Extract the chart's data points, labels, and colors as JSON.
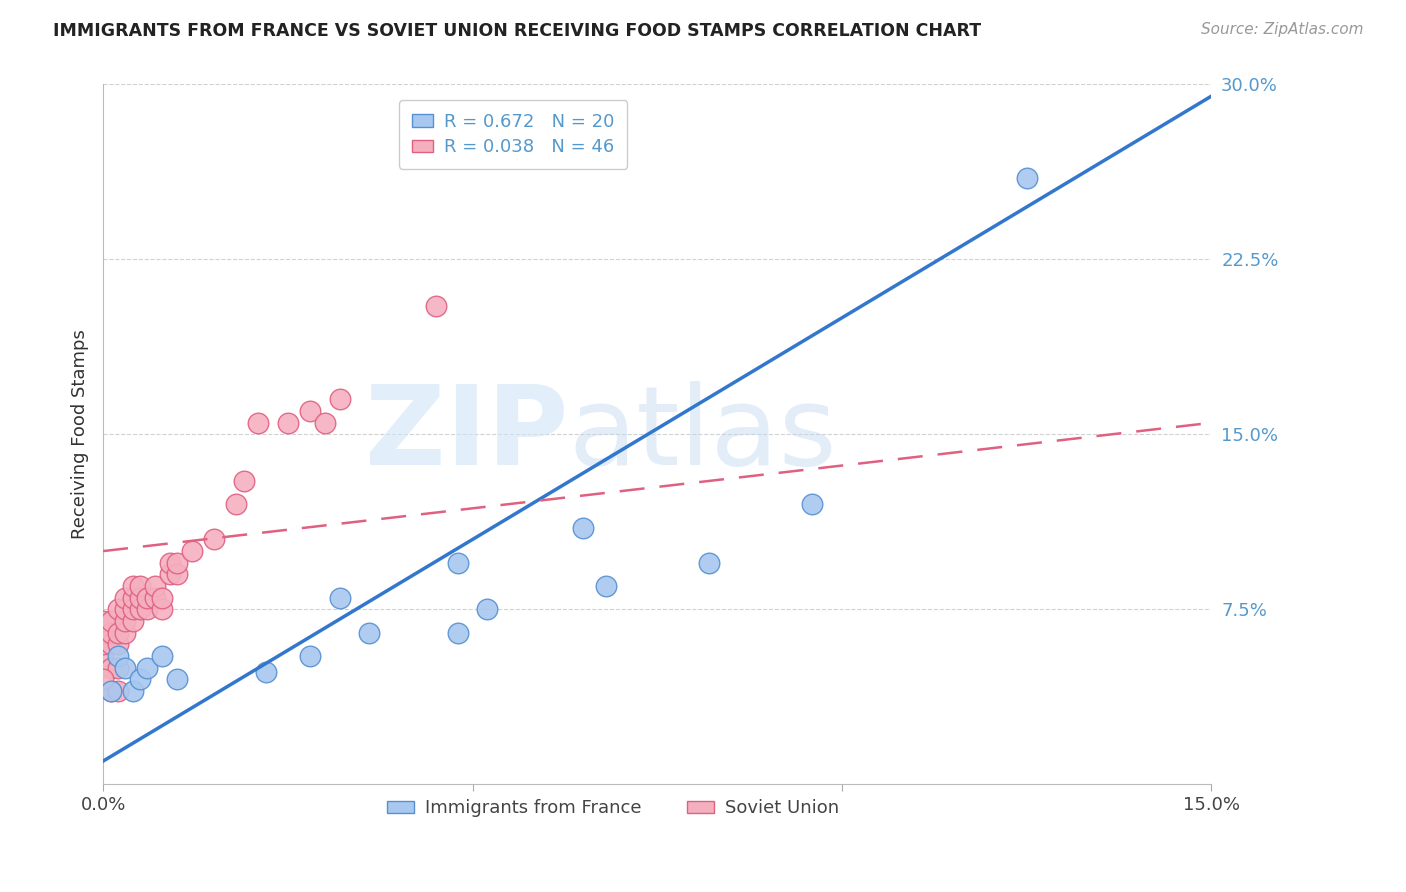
{
  "title": "IMMIGRANTS FROM FRANCE VS SOVIET UNION RECEIVING FOOD STAMPS CORRELATION CHART",
  "source": "Source: ZipAtlas.com",
  "ylabel": "Receiving Food Stamps",
  "xlim": [
    0.0,
    0.15
  ],
  "ylim": [
    0.0,
    0.3
  ],
  "yticks_right": [
    0.075,
    0.15,
    0.225,
    0.3
  ],
  "ytick_labels_right": [
    "7.5%",
    "15.0%",
    "22.5%",
    "30.0%"
  ],
  "watermark_zip": "ZIP",
  "watermark_atlas": "atlas",
  "legend_france_r": "R = 0.672",
  "legend_france_n": "N = 20",
  "legend_soviet_r": "R = 0.038",
  "legend_soviet_n": "N = 46",
  "france_color": "#a8c8f0",
  "soviet_color": "#f5b0c0",
  "france_edge_color": "#5590d0",
  "soviet_edge_color": "#e06080",
  "france_line_color": "#3377cc",
  "soviet_line_color": "#e06080",
  "grid_color": "#cccccc",
  "right_axis_color": "#5599cc",
  "background_color": "#ffffff",
  "france_x": [
    0.001,
    0.002,
    0.003,
    0.004,
    0.005,
    0.006,
    0.008,
    0.01,
    0.022,
    0.028,
    0.036,
    0.048,
    0.052,
    0.032,
    0.048,
    0.065,
    0.068,
    0.082,
    0.096,
    0.125
  ],
  "france_y": [
    0.04,
    0.055,
    0.05,
    0.04,
    0.045,
    0.05,
    0.055,
    0.045,
    0.048,
    0.055,
    0.065,
    0.065,
    0.075,
    0.08,
    0.095,
    0.11,
    0.085,
    0.095,
    0.12,
    0.26
  ],
  "soviet_x": [
    0.0,
    0.0,
    0.0,
    0.0,
    0.001,
    0.001,
    0.001,
    0.001,
    0.001,
    0.002,
    0.002,
    0.002,
    0.002,
    0.002,
    0.003,
    0.003,
    0.003,
    0.003,
    0.004,
    0.004,
    0.004,
    0.004,
    0.005,
    0.005,
    0.005,
    0.006,
    0.006,
    0.007,
    0.007,
    0.008,
    0.008,
    0.009,
    0.009,
    0.01,
    0.01,
    0.012,
    0.015,
    0.018,
    0.019,
    0.021,
    0.025,
    0.028,
    0.03,
    0.032,
    0.045,
    0.0
  ],
  "soviet_y": [
    0.055,
    0.06,
    0.065,
    0.07,
    0.04,
    0.05,
    0.06,
    0.065,
    0.07,
    0.04,
    0.05,
    0.06,
    0.065,
    0.075,
    0.065,
    0.07,
    0.075,
    0.08,
    0.07,
    0.075,
    0.08,
    0.085,
    0.075,
    0.08,
    0.085,
    0.075,
    0.08,
    0.08,
    0.085,
    0.075,
    0.08,
    0.09,
    0.095,
    0.09,
    0.095,
    0.1,
    0.105,
    0.12,
    0.13,
    0.155,
    0.155,
    0.16,
    0.155,
    0.165,
    0.205,
    0.045
  ],
  "france_trend_x": [
    0.0,
    0.15
  ],
  "france_trend_y": [
    0.01,
    0.295
  ],
  "soviet_trend_x": [
    0.0,
    0.15
  ],
  "soviet_trend_y": [
    0.1,
    0.155
  ]
}
